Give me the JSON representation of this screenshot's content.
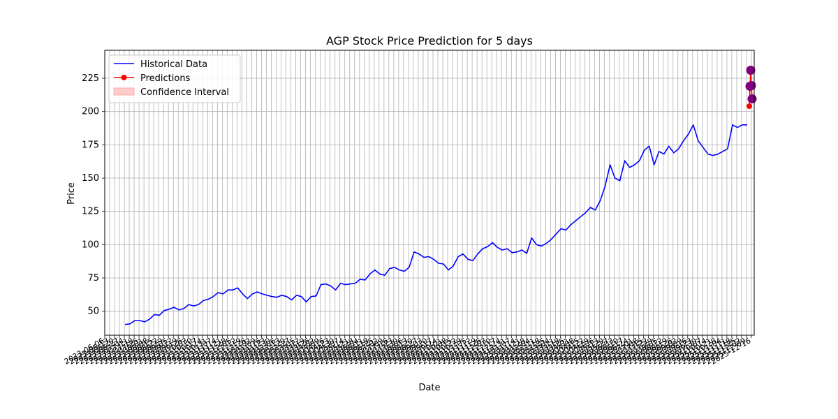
{
  "chart_data": {
    "type": "line",
    "title": "AGP Stock Price Prediction for 5 days",
    "xlabel": "Date",
    "ylabel": "Price",
    "x_range": [
      "2023-06-06",
      "2025-03-20"
    ],
    "ylim": [
      32,
      246
    ],
    "y_ticks": [
      50,
      75,
      100,
      125,
      150,
      175,
      200,
      225
    ],
    "grid": true,
    "legend_position": "upper-left",
    "legend": [
      "Historical Data",
      "Predictions",
      "Confidence Interval"
    ],
    "colors": {
      "historical": "#0000ff",
      "prediction": "#ff0000",
      "prediction_marker": "#800080",
      "confidence": "#ffcccc",
      "grid": "#b0b0b0"
    },
    "historical": {
      "name": "Historical Data",
      "points": [
        [
          "2023-07-05",
          40
        ],
        [
          "2023-07-12",
          40.5
        ],
        [
          "2023-07-19",
          43
        ],
        [
          "2023-07-26",
          43
        ],
        [
          "2023-08-02",
          42
        ],
        [
          "2023-08-09",
          44
        ],
        [
          "2023-08-16",
          47.5
        ],
        [
          "2023-08-23",
          47
        ],
        [
          "2023-08-30",
          50.5
        ],
        [
          "2023-09-06",
          51.5
        ],
        [
          "2023-09-13",
          53
        ],
        [
          "2023-09-20",
          51
        ],
        [
          "2023-09-27",
          52
        ],
        [
          "2023-10-04",
          55
        ],
        [
          "2023-10-11",
          54
        ],
        [
          "2023-10-18",
          55
        ],
        [
          "2023-10-25",
          58
        ],
        [
          "2023-11-01",
          59
        ],
        [
          "2023-11-08",
          61
        ],
        [
          "2023-11-15",
          64
        ],
        [
          "2023-11-22",
          63
        ],
        [
          "2023-11-29",
          66
        ],
        [
          "2023-12-06",
          66
        ],
        [
          "2023-12-13",
          67.5
        ],
        [
          "2023-12-20",
          63
        ],
        [
          "2023-12-27",
          59.5
        ],
        [
          "2024-01-03",
          63
        ],
        [
          "2024-01-10",
          64.5
        ],
        [
          "2024-01-17",
          63
        ],
        [
          "2024-01-24",
          62
        ],
        [
          "2024-01-31",
          61
        ],
        [
          "2024-02-07",
          60.5
        ],
        [
          "2024-02-14",
          62
        ],
        [
          "2024-02-21",
          61
        ],
        [
          "2024-02-28",
          58.5
        ],
        [
          "2024-03-06",
          62
        ],
        [
          "2024-03-13",
          61
        ],
        [
          "2024-03-20",
          57
        ],
        [
          "2024-03-27",
          61
        ],
        [
          "2024-04-03",
          61.5
        ],
        [
          "2024-04-10",
          70
        ],
        [
          "2024-04-17",
          70.5
        ],
        [
          "2024-04-24",
          69
        ],
        [
          "2024-05-01",
          66
        ],
        [
          "2024-05-08",
          71
        ],
        [
          "2024-05-15",
          70
        ],
        [
          "2024-05-22",
          70.5
        ],
        [
          "2024-05-29",
          71
        ],
        [
          "2024-06-05",
          74
        ],
        [
          "2024-06-12",
          73.5
        ],
        [
          "2024-06-19",
          78
        ],
        [
          "2024-06-26",
          81
        ],
        [
          "2024-07-03",
          78
        ],
        [
          "2024-07-10",
          77
        ],
        [
          "2024-07-17",
          82
        ],
        [
          "2024-07-24",
          83
        ],
        [
          "2024-07-31",
          81
        ],
        [
          "2024-08-07",
          80
        ],
        [
          "2024-08-14",
          83
        ],
        [
          "2024-08-21",
          94.5
        ],
        [
          "2024-08-28",
          93
        ],
        [
          "2024-09-04",
          90.5
        ],
        [
          "2024-09-11",
          91
        ],
        [
          "2024-09-18",
          89
        ],
        [
          "2024-09-25",
          86
        ],
        [
          "2024-10-02",
          85.5
        ],
        [
          "2024-10-09",
          81
        ],
        [
          "2024-10-16",
          84
        ],
        [
          "2024-10-23",
          91
        ],
        [
          "2024-10-30",
          93
        ],
        [
          "2024-11-06",
          89
        ],
        [
          "2024-11-13",
          88
        ],
        [
          "2024-11-20",
          93
        ],
        [
          "2024-11-27",
          97
        ],
        [
          "2024-12-04",
          98.5
        ],
        [
          "2024-12-11",
          101.5
        ],
        [
          "2024-12-18",
          98
        ],
        [
          "2024-12-25",
          96
        ],
        [
          "2025-01-01",
          97
        ],
        [
          "2025-01-08",
          94
        ],
        [
          "2025-01-15",
          94.5
        ],
        [
          "2025-01-22",
          96
        ],
        [
          "2025-01-29",
          93.5
        ],
        [
          "2025-02-05",
          105
        ],
        [
          "2025-02-12",
          100
        ],
        [
          "2025-02-19",
          99
        ],
        [
          "2025-02-26",
          101
        ],
        [
          "2025-03-05",
          104
        ],
        [
          "2025-03-12",
          108
        ],
        [
          "2025-03-19",
          112
        ],
        [
          "2025-03-26",
          111
        ],
        [
          "2025-04-02",
          115
        ],
        [
          "2025-04-09",
          118
        ],
        [
          "2025-04-16",
          121
        ],
        [
          "2025-04-23",
          124
        ],
        [
          "2025-04-30",
          128
        ],
        [
          "2025-05-07",
          126
        ],
        [
          "2025-05-14",
          133
        ],
        [
          "2025-05-21",
          144
        ],
        [
          "2025-05-28",
          160
        ],
        [
          "2025-06-04",
          150
        ],
        [
          "2025-06-11",
          148
        ],
        [
          "2025-06-18",
          163
        ],
        [
          "2025-06-25",
          158
        ],
        [
          "2025-07-02",
          160
        ],
        [
          "2025-07-09",
          163
        ],
        [
          "2025-07-16",
          171
        ],
        [
          "2025-07-23",
          174
        ],
        [
          "2025-07-30",
          160
        ],
        [
          "2025-08-06",
          170
        ],
        [
          "2025-08-13",
          168
        ],
        [
          "2025-08-20",
          174
        ],
        [
          "2025-08-27",
          169
        ],
        [
          "2025-09-03",
          172
        ],
        [
          "2025-09-10",
          178
        ],
        [
          "2025-09-17",
          183
        ],
        [
          "2025-09-24",
          190
        ],
        [
          "2025-10-01",
          178
        ],
        [
          "2025-10-08",
          173
        ],
        [
          "2025-10-15",
          168
        ],
        [
          "2025-10-22",
          167
        ],
        [
          "2025-10-29",
          168
        ],
        [
          "2025-11-05",
          170
        ],
        [
          "2025-11-12",
          172
        ],
        [
          "2025-11-19",
          190
        ],
        [
          "2025-11-26",
          188
        ],
        [
          "2025-12-03",
          190
        ],
        [
          "2025-12-10",
          190
        ]
      ]
    },
    "predictions": {
      "name": "Predictions",
      "points": [
        [
          "2025-12-13",
          204
        ],
        [
          "2025-12-14",
          219
        ],
        [
          "2025-12-15",
          231
        ],
        [
          "2025-12-16",
          219.5
        ],
        [
          "2025-12-17",
          209.5
        ]
      ],
      "large_markers": [
        [
          "2025-12-14",
          219
        ],
        [
          "2025-12-15",
          231
        ],
        [
          "2025-12-16",
          219.5
        ],
        [
          "2025-12-17",
          209.5
        ]
      ]
    }
  }
}
